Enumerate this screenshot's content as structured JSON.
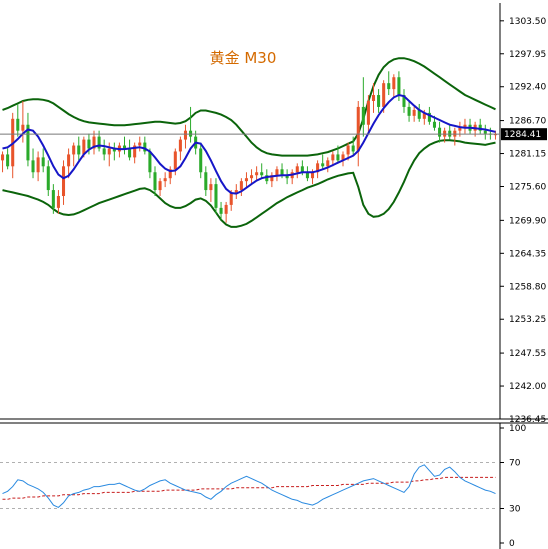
{
  "chart_data": [
    {
      "type": "candlestick",
      "title": "黄金 M30",
      "current_price": "1284.41",
      "y_ticks": [
        "1303.50",
        "1297.95",
        "1292.40",
        "1286.70",
        "1281.15",
        "1275.60",
        "1269.90",
        "1264.35",
        "1258.80",
        "1253.25",
        "1247.55",
        "1242.00",
        "1236.45"
      ],
      "ylim": [
        1236.45,
        1306.5
      ],
      "x_count": 98,
      "candles": [
        [
          1280.0,
          1281.5,
          1278.0,
          1281.0
        ],
        [
          1281.0,
          1282.0,
          1278.5,
          1279.0
        ],
        [
          1279.0,
          1288.0,
          1277.0,
          1287.0
        ],
        [
          1287.0,
          1289.5,
          1284.0,
          1285.0
        ],
        [
          1285.0,
          1290.0,
          1283.0,
          1286.0
        ],
        [
          1286.0,
          1288.0,
          1279.0,
          1280.0
        ],
        [
          1280.0,
          1282.0,
          1277.0,
          1278.0
        ],
        [
          1278.0,
          1281.5,
          1276.5,
          1280.5
        ],
        [
          1280.5,
          1282.0,
          1278.0,
          1279.0
        ],
        [
          1279.0,
          1280.0,
          1274.0,
          1275.0
        ],
        [
          1275.0,
          1276.0,
          1271.0,
          1272.0
        ],
        [
          1272.0,
          1275.0,
          1271.0,
          1274.0
        ],
        [
          1274.0,
          1280.0,
          1272.5,
          1279.0
        ],
        [
          1279.0,
          1282.0,
          1277.0,
          1281.0
        ],
        [
          1281.0,
          1283.0,
          1279.0,
          1282.5
        ],
        [
          1282.5,
          1284.0,
          1280.0,
          1281.0
        ],
        [
          1281.0,
          1284.0,
          1280.5,
          1283.5
        ],
        [
          1283.5,
          1284.5,
          1281.0,
          1282.0
        ],
        [
          1282.0,
          1285.0,
          1281.0,
          1284.0
        ],
        [
          1284.0,
          1285.0,
          1281.5,
          1282.0
        ],
        [
          1282.0,
          1283.5,
          1280.0,
          1281.0
        ],
        [
          1281.0,
          1283.0,
          1279.0,
          1282.0
        ],
        [
          1282.0,
          1283.0,
          1280.0,
          1281.5
        ],
        [
          1281.5,
          1283.0,
          1280.5,
          1282.5
        ],
        [
          1282.5,
          1284.0,
          1281.0,
          1282.0
        ],
        [
          1282.0,
          1283.5,
          1280.0,
          1280.5
        ],
        [
          1280.5,
          1283.0,
          1279.5,
          1282.5
        ],
        [
          1282.5,
          1284.0,
          1281.5,
          1283.0
        ],
        [
          1283.0,
          1284.0,
          1281.0,
          1281.5
        ],
        [
          1281.5,
          1282.0,
          1277.0,
          1278.0
        ],
        [
          1278.0,
          1279.0,
          1274.0,
          1275.0
        ],
        [
          1275.0,
          1277.0,
          1274.0,
          1276.5
        ],
        [
          1276.5,
          1278.0,
          1275.5,
          1277.0
        ],
        [
          1277.0,
          1279.0,
          1276.0,
          1278.5
        ],
        [
          1278.5,
          1282.0,
          1277.5,
          1281.5
        ],
        [
          1281.5,
          1284.0,
          1280.0,
          1283.5
        ],
        [
          1283.5,
          1286.0,
          1282.0,
          1285.0
        ],
        [
          1285.0,
          1289.0,
          1283.0,
          1284.0
        ],
        [
          1284.0,
          1285.0,
          1281.0,
          1282.0
        ],
        [
          1282.0,
          1283.0,
          1277.0,
          1278.0
        ],
        [
          1278.0,
          1279.0,
          1274.0,
          1275.0
        ],
        [
          1275.0,
          1277.0,
          1273.0,
          1276.0
        ],
        [
          1276.0,
          1277.0,
          1271.0,
          1272.0
        ],
        [
          1272.0,
          1273.0,
          1270.0,
          1271.0
        ],
        [
          1271.0,
          1273.0,
          1269.5,
          1272.5
        ],
        [
          1272.5,
          1275.0,
          1271.5,
          1274.5
        ],
        [
          1274.5,
          1276.0,
          1273.5,
          1275.0
        ],
        [
          1275.0,
          1277.0,
          1274.0,
          1276.5
        ],
        [
          1276.5,
          1278.0,
          1275.5,
          1277.0
        ],
        [
          1277.0,
          1278.5,
          1276.0,
          1277.5
        ],
        [
          1277.5,
          1279.0,
          1276.5,
          1278.0
        ],
        [
          1278.0,
          1279.5,
          1277.0,
          1277.5
        ],
        [
          1277.5,
          1278.5,
          1276.0,
          1276.5
        ],
        [
          1276.5,
          1278.0,
          1275.5,
          1277.5
        ],
        [
          1277.5,
          1279.0,
          1276.5,
          1278.5
        ],
        [
          1278.5,
          1279.5,
          1277.0,
          1277.5
        ],
        [
          1277.5,
          1278.5,
          1276.0,
          1277.0
        ],
        [
          1277.0,
          1278.5,
          1276.0,
          1278.0
        ],
        [
          1278.0,
          1279.5,
          1277.0,
          1279.0
        ],
        [
          1279.0,
          1280.0,
          1277.5,
          1278.0
        ],
        [
          1278.0,
          1279.0,
          1276.5,
          1277.0
        ],
        [
          1277.0,
          1278.5,
          1276.0,
          1278.0
        ],
        [
          1278.0,
          1280.0,
          1277.0,
          1279.5
        ],
        [
          1279.5,
          1281.0,
          1278.5,
          1279.0
        ],
        [
          1279.0,
          1280.5,
          1278.0,
          1280.0
        ],
        [
          1280.0,
          1281.5,
          1279.0,
          1281.0
        ],
        [
          1281.0,
          1282.5,
          1279.5,
          1280.0
        ],
        [
          1280.0,
          1281.5,
          1279.0,
          1281.0
        ],
        [
          1281.0,
          1283.0,
          1280.0,
          1282.5
        ],
        [
          1282.5,
          1284.0,
          1281.0,
          1281.5
        ],
        [
          1281.5,
          1290.0,
          1279.0,
          1289.0
        ],
        [
          1289.0,
          1294.0,
          1284.0,
          1286.0
        ],
        [
          1286.0,
          1291.0,
          1284.5,
          1290.0
        ],
        [
          1290.0,
          1293.0,
          1288.0,
          1291.0
        ],
        [
          1291.0,
          1292.0,
          1288.0,
          1289.0
        ],
        [
          1289.0,
          1293.5,
          1288.0,
          1293.0
        ],
        [
          1293.0,
          1295.0,
          1291.0,
          1292.0
        ],
        [
          1292.0,
          1294.5,
          1290.5,
          1294.0
        ],
        [
          1294.0,
          1295.0,
          1290.0,
          1291.0
        ],
        [
          1291.0,
          1292.0,
          1288.0,
          1289.0
        ],
        [
          1289.0,
          1290.0,
          1286.5,
          1287.5
        ],
        [
          1287.5,
          1289.0,
          1286.5,
          1288.5
        ],
        [
          1288.5,
          1289.5,
          1286.5,
          1287.0
        ],
        [
          1287.0,
          1288.5,
          1286.0,
          1288.0
        ],
        [
          1288.0,
          1289.0,
          1286.0,
          1286.5
        ],
        [
          1286.5,
          1287.5,
          1285.0,
          1285.5
        ],
        [
          1285.5,
          1286.5,
          1283.0,
          1284.0
        ],
        [
          1284.0,
          1285.5,
          1283.0,
          1285.0
        ],
        [
          1285.0,
          1286.0,
          1283.5,
          1284.0
        ],
        [
          1284.0,
          1285.5,
          1282.5,
          1285.0
        ],
        [
          1285.0,
          1286.5,
          1284.0,
          1285.5
        ],
        [
          1285.5,
          1287.0,
          1284.5,
          1286.0
        ],
        [
          1286.0,
          1287.0,
          1284.5,
          1285.0
        ],
        [
          1285.0,
          1286.5,
          1284.0,
          1286.0
        ],
        [
          1286.0,
          1287.0,
          1284.5,
          1285.0
        ],
        [
          1285.0,
          1286.0,
          1283.5,
          1284.5
        ],
        [
          1284.5,
          1285.5,
          1283.5,
          1284.41
        ],
        [
          1284.41,
          1285.0,
          1283.5,
          1284.41
        ]
      ],
      "ma": [
        1282.0,
        1282.2,
        1282.8,
        1283.6,
        1284.5,
        1285.2,
        1285.0,
        1284.0,
        1282.5,
        1280.8,
        1279.0,
        1277.6,
        1277.0,
        1277.4,
        1278.5,
        1279.8,
        1281.0,
        1281.8,
        1282.3,
        1282.5,
        1282.4,
        1282.2,
        1282.0,
        1281.9,
        1281.9,
        1282.0,
        1282.1,
        1282.2,
        1282.0,
        1281.5,
        1280.5,
        1279.4,
        1278.6,
        1278.2,
        1278.3,
        1279.0,
        1280.4,
        1282.0,
        1283.0,
        1282.8,
        1281.6,
        1280.0,
        1278.2,
        1276.5,
        1275.2,
        1274.5,
        1274.4,
        1274.8,
        1275.4,
        1276.0,
        1276.6,
        1277.0,
        1277.2,
        1277.3,
        1277.4,
        1277.5,
        1277.5,
        1277.6,
        1277.8,
        1278.0,
        1278.0,
        1278.0,
        1278.2,
        1278.5,
        1278.8,
        1279.2,
        1279.6,
        1280.0,
        1280.4,
        1280.8,
        1281.6,
        1283.0,
        1284.6,
        1286.2,
        1287.6,
        1288.8,
        1289.8,
        1290.6,
        1291.0,
        1290.8,
        1290.0,
        1289.2,
        1288.5,
        1288.0,
        1287.6,
        1287.2,
        1286.8,
        1286.4,
        1286.0,
        1285.8,
        1285.6,
        1285.5,
        1285.5,
        1285.4,
        1285.3,
        1285.2,
        1285.0,
        1284.8
      ],
      "bb_upper": [
        1288.5,
        1288.8,
        1289.2,
        1289.6,
        1290.0,
        1290.2,
        1290.3,
        1290.3,
        1290.2,
        1290.0,
        1289.6,
        1289.0,
        1288.4,
        1287.8,
        1287.3,
        1286.9,
        1286.6,
        1286.4,
        1286.3,
        1286.2,
        1286.1,
        1286.0,
        1285.9,
        1285.9,
        1285.9,
        1286.0,
        1286.1,
        1286.2,
        1286.3,
        1286.4,
        1286.5,
        1286.5,
        1286.4,
        1286.3,
        1286.2,
        1286.3,
        1286.6,
        1287.2,
        1288.0,
        1288.4,
        1288.4,
        1288.2,
        1288.0,
        1287.7,
        1287.3,
        1286.8,
        1286.0,
        1285.0,
        1284.0,
        1283.0,
        1282.2,
        1281.6,
        1281.2,
        1281.0,
        1280.9,
        1280.8,
        1280.8,
        1280.8,
        1280.8,
        1280.8,
        1280.8,
        1280.9,
        1281.0,
        1281.2,
        1281.4,
        1281.7,
        1282.0,
        1282.4,
        1282.8,
        1283.2,
        1284.5,
        1287.0,
        1290.0,
        1292.5,
        1294.4,
        1295.7,
        1296.5,
        1297.0,
        1297.2,
        1297.2,
        1297.0,
        1296.7,
        1296.3,
        1295.8,
        1295.2,
        1294.6,
        1294.0,
        1293.4,
        1292.8,
        1292.2,
        1291.6,
        1291.0,
        1290.6,
        1290.2,
        1289.8,
        1289.4,
        1289.0,
        1288.6
      ],
      "bb_lower": [
        1275.0,
        1274.8,
        1274.6,
        1274.4,
        1274.2,
        1274.0,
        1273.7,
        1273.4,
        1273.0,
        1272.5,
        1271.8,
        1271.2,
        1270.9,
        1270.8,
        1270.9,
        1271.2,
        1271.6,
        1272.0,
        1272.4,
        1272.8,
        1273.1,
        1273.4,
        1273.7,
        1274.0,
        1274.3,
        1274.6,
        1274.9,
        1275.2,
        1275.3,
        1275.0,
        1274.4,
        1273.6,
        1272.8,
        1272.3,
        1272.0,
        1272.0,
        1272.3,
        1272.8,
        1273.4,
        1273.6,
        1273.2,
        1272.4,
        1271.2,
        1270.0,
        1269.2,
        1268.8,
        1268.8,
        1269.0,
        1269.3,
        1269.8,
        1270.4,
        1271.0,
        1271.6,
        1272.2,
        1272.8,
        1273.3,
        1273.8,
        1274.2,
        1274.6,
        1275.0,
        1275.4,
        1275.7,
        1276.0,
        1276.4,
        1276.8,
        1277.1,
        1277.4,
        1277.6,
        1277.8,
        1277.9,
        1275.5,
        1272.5,
        1271.0,
        1270.5,
        1270.6,
        1271.0,
        1271.8,
        1273.0,
        1274.6,
        1276.4,
        1278.4,
        1280.0,
        1281.2,
        1282.0,
        1282.6,
        1283.0,
        1283.3,
        1283.4,
        1283.4,
        1283.3,
        1283.2,
        1283.0,
        1282.9,
        1282.8,
        1282.7,
        1282.6,
        1282.8,
        1283.0
      ]
    },
    {
      "type": "line",
      "y_ticks": [
        "100",
        "70",
        "30",
        "0"
      ],
      "ylim": [
        0,
        100
      ],
      "levels": [
        70,
        30
      ],
      "series": [
        {
          "values": [
            43,
            45,
            49,
            55,
            54,
            51,
            49,
            47,
            44,
            39,
            33,
            31,
            35,
            41,
            43,
            44,
            46,
            47,
            49,
            49,
            50,
            51,
            51,
            52,
            50,
            48,
            46,
            45,
            47,
            50,
            52,
            54,
            55,
            52,
            50,
            48,
            46,
            45,
            44,
            43,
            40,
            38,
            42,
            45,
            49,
            52,
            54,
            56,
            58,
            56,
            54,
            52,
            49,
            46,
            44,
            42,
            40,
            38,
            37,
            35,
            34,
            33,
            35,
            38,
            40,
            42,
            44,
            46,
            48,
            50,
            52,
            54,
            55,
            56,
            54,
            52,
            50,
            48,
            46,
            44,
            49,
            60,
            66,
            68,
            63,
            58,
            59,
            64,
            66,
            62,
            57,
            54,
            52,
            50,
            48,
            46,
            45,
            43
          ]
        },
        {
          "values": [
            38,
            38,
            39,
            39,
            39,
            40,
            40,
            40,
            41,
            41,
            41,
            41,
            42,
            42,
            42,
            42,
            43,
            43,
            43,
            43,
            44,
            44,
            44,
            44,
            44,
            44,
            45,
            45,
            45,
            45,
            45,
            45,
            46,
            46,
            46,
            46,
            46,
            46,
            46,
            47,
            47,
            47,
            47,
            47,
            47,
            47,
            48,
            48,
            48,
            48,
            48,
            48,
            48,
            48,
            49,
            49,
            49,
            49,
            49,
            49,
            49,
            50,
            50,
            50,
            50,
            50,
            50,
            51,
            51,
            51,
            51,
            51,
            52,
            52,
            52,
            52,
            52,
            53,
            53,
            53,
            53,
            54,
            54,
            55,
            55,
            56,
            56,
            57,
            57,
            57,
            57,
            57,
            57,
            57,
            57,
            57,
            57,
            57
          ]
        }
      ]
    }
  ],
  "colors": {
    "bull": "#e8542b",
    "bear": "#2aaa2a",
    "ma": "#1616c8",
    "bands": "#0b640b",
    "rsi": "#2a8ae0",
    "rsi_signal": "#c81e1e",
    "title": "#d46a00"
  }
}
